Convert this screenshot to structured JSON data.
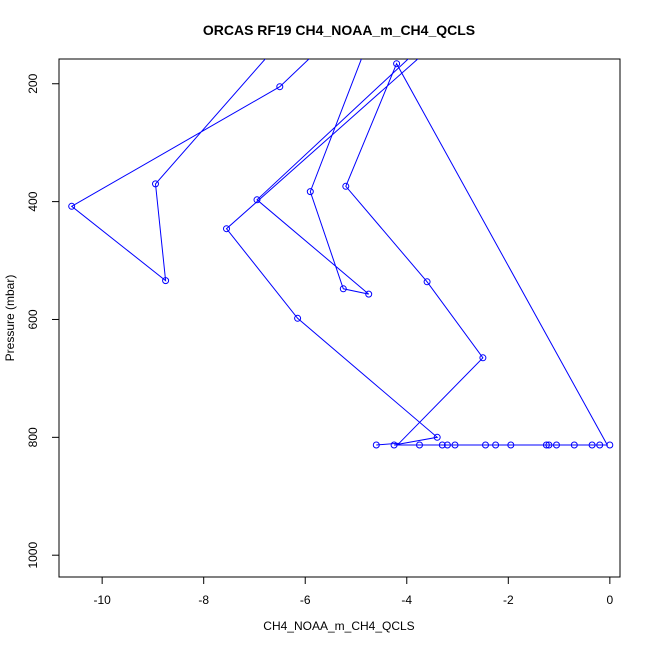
{
  "chart_data": {
    "type": "line",
    "title": "ORCAS RF19 CH4_NOAA_m_CH4_QCLS",
    "xlabel": "CH4_NOAA_m_CH4_QCLS",
    "ylabel": "Pressure (mbar)",
    "xlim": [
      -10.85,
      0.2
    ],
    "ylim": [
      1037,
      158
    ],
    "y_reversed": true,
    "grid": false,
    "x_ticks": [
      -10,
      -8,
      -6,
      -4,
      -2,
      0
    ],
    "y_ticks": [
      200,
      400,
      600,
      800,
      1000
    ],
    "color": "#0000ff",
    "series": [
      {
        "points": [
          [
            -6.4,
            120
          ],
          [
            -8.95,
            370
          ],
          [
            -8.75,
            534
          ],
          [
            -10.6,
            408
          ],
          [
            -6.5,
            205
          ],
          [
            -4.0,
            0
          ]
        ]
      },
      {
        "points": [
          [
            -4.5,
            70
          ],
          [
            -5.9,
            383
          ],
          [
            -5.25,
            548
          ],
          [
            -4.75,
            557
          ],
          [
            -6.95,
            397
          ],
          [
            -3.5,
            120
          ]
        ]
      },
      {
        "points": [
          [
            -2.5,
            60
          ],
          [
            -7.55,
            446
          ],
          [
            -6.15,
            598
          ],
          [
            -3.4,
            800
          ],
          [
            -4.25,
            813
          ],
          [
            -0.05,
            813
          ],
          [
            -4.2,
            166
          ],
          [
            -5.2,
            374
          ],
          [
            -3.6,
            536
          ],
          [
            -2.5,
            665
          ],
          [
            -4.15,
            810
          ],
          [
            -4.6,
            813
          ]
        ]
      }
    ],
    "points": [
      [
        -10.6,
        408
      ],
      [
        -8.95,
        370
      ],
      [
        -8.75,
        534
      ],
      [
        -6.5,
        205
      ],
      [
        -5.9,
        383
      ],
      [
        -5.25,
        548
      ],
      [
        -4.75,
        557
      ],
      [
        -6.95,
        397
      ],
      [
        -7.55,
        446
      ],
      [
        -6.15,
        598
      ],
      [
        -3.4,
        800
      ],
      [
        -4.2,
        166
      ],
      [
        -5.2,
        374
      ],
      [
        -3.6,
        536
      ],
      [
        -2.5,
        665
      ],
      [
        -4.6,
        813
      ],
      [
        -4.25,
        813
      ],
      [
        -3.75,
        813
      ],
      [
        -3.3,
        813
      ],
      [
        -3.2,
        813
      ],
      [
        -3.05,
        813
      ],
      [
        -2.45,
        813
      ],
      [
        -2.25,
        813
      ],
      [
        -1.95,
        813
      ],
      [
        -1.25,
        813
      ],
      [
        -1.2,
        813
      ],
      [
        -1.05,
        813
      ],
      [
        -0.7,
        813
      ],
      [
        -0.35,
        813
      ],
      [
        -0.2,
        813
      ],
      [
        0.0,
        813
      ]
    ]
  }
}
